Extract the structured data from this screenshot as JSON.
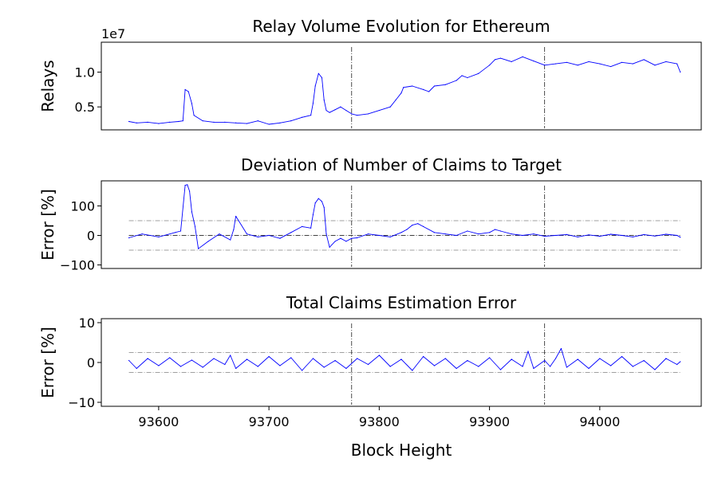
{
  "figure": {
    "xlabel": "Block Height"
  },
  "chart_data": [
    {
      "type": "line",
      "title": "Relay Volume Evolution for Ethereum",
      "xlabel": "",
      "ylabel": "Relays",
      "offset_label": "1e7",
      "xlim": [
        93548,
        94092
      ],
      "ylim": [
        0.17,
        1.43
      ],
      "yticks": [
        0.5,
        1.0
      ],
      "ytick_labels": [
        "0.5",
        "1.0"
      ],
      "x_axis_visible": false,
      "vlines": [
        93775,
        93950
      ],
      "hlines": [],
      "colors": {
        "series": "#0000ff",
        "vline": "#000000"
      },
      "series": [
        {
          "x": [
            93573,
            93580,
            93590,
            93600,
            93610,
            93618,
            93622,
            93624,
            93627,
            93630,
            93632,
            93640,
            93650,
            93660,
            93670,
            93680,
            93690,
            93700,
            93710,
            93720,
            93730,
            93738,
            93740,
            93742,
            93745,
            93748,
            93750,
            93752,
            93755,
            93760,
            93765,
            93770,
            93775,
            93780,
            93790,
            93800,
            93810,
            93815,
            93820,
            93822,
            93830,
            93840,
            93845,
            93850,
            93860,
            93870,
            93875,
            93880,
            93890,
            93900,
            93905,
            93910,
            93920,
            93930,
            93940,
            93950,
            93960,
            93970,
            93980,
            93990,
            94000,
            94010,
            94020,
            94030,
            94040,
            94050,
            94060,
            94070,
            94073
          ],
          "y": [
            0.29,
            0.27,
            0.28,
            0.26,
            0.28,
            0.29,
            0.3,
            0.75,
            0.72,
            0.55,
            0.38,
            0.3,
            0.28,
            0.28,
            0.27,
            0.26,
            0.3,
            0.25,
            0.27,
            0.3,
            0.35,
            0.38,
            0.55,
            0.8,
            0.98,
            0.92,
            0.6,
            0.45,
            0.42,
            0.46,
            0.5,
            0.45,
            0.4,
            0.38,
            0.4,
            0.45,
            0.5,
            0.6,
            0.7,
            0.78,
            0.8,
            0.75,
            0.72,
            0.8,
            0.82,
            0.88,
            0.95,
            0.92,
            0.98,
            1.1,
            1.18,
            1.2,
            1.15,
            1.22,
            1.16,
            1.1,
            1.12,
            1.14,
            1.1,
            1.15,
            1.12,
            1.08,
            1.14,
            1.12,
            1.18,
            1.1,
            1.15,
            1.12,
            1.0
          ]
        }
      ]
    },
    {
      "type": "line",
      "title": "Deviation of Number of Claims to Target",
      "xlabel": "",
      "ylabel": "Error [%]",
      "xlim": [
        93548,
        94092
      ],
      "ylim": [
        -112,
        185
      ],
      "yticks": [
        -100,
        0,
        100
      ],
      "ytick_labels": [
        "−100",
        "0",
        "100"
      ],
      "x_axis_visible": false,
      "vlines": [
        93775,
        93950
      ],
      "hlines": [
        50,
        0,
        -50
      ],
      "colors": {
        "series": "#0000ff",
        "vline": "#000000",
        "hline": "#808080"
      },
      "series": [
        {
          "x": [
            93573,
            93585,
            93600,
            93615,
            93620,
            93624,
            93626,
            93628,
            93630,
            93633,
            93636,
            93645,
            93655,
            93665,
            93668,
            93670,
            93680,
            93690,
            93700,
            93710,
            93720,
            93730,
            93738,
            93740,
            93742,
            93745,
            93748,
            93750,
            93752,
            93755,
            93760,
            93765,
            93770,
            93775,
            93780,
            93790,
            93800,
            93810,
            93820,
            93825,
            93830,
            93835,
            93840,
            93850,
            93860,
            93870,
            93880,
            93890,
            93900,
            93905,
            93910,
            93920,
            93930,
            93940,
            93950,
            93960,
            93970,
            93980,
            93990,
            94000,
            94010,
            94020,
            94030,
            94040,
            94050,
            94060,
            94070,
            94073
          ],
          "y": [
            -8,
            5,
            -5,
            10,
            15,
            170,
            172,
            150,
            80,
            30,
            -45,
            -20,
            5,
            -15,
            20,
            65,
            5,
            -5,
            0,
            -10,
            10,
            30,
            25,
            70,
            110,
            125,
            115,
            95,
            5,
            -40,
            -20,
            -10,
            -20,
            -10,
            -8,
            5,
            0,
            -5,
            10,
            20,
            35,
            40,
            30,
            10,
            5,
            0,
            15,
            5,
            10,
            20,
            15,
            5,
            0,
            5,
            -3,
            0,
            3,
            -5,
            2,
            -3,
            4,
            0,
            -5,
            3,
            -2,
            4,
            0,
            -6
          ]
        }
      ]
    },
    {
      "type": "line",
      "title": "Total Claims Estimation Error",
      "xlabel": "Block Height",
      "ylabel": "Error [%]",
      "xlim": [
        93548,
        94092
      ],
      "ylim": [
        -11,
        11
      ],
      "yticks": [
        -10,
        0,
        10
      ],
      "ytick_labels": [
        "−10",
        "0",
        "10"
      ],
      "xticks": [
        93600,
        93700,
        93800,
        93900,
        94000
      ],
      "xtick_labels": [
        "93600",
        "93700",
        "93800",
        "93900",
        "94000"
      ],
      "x_axis_visible": true,
      "vlines": [
        93775,
        93950
      ],
      "hlines": [
        2.5,
        -2.5
      ],
      "colors": {
        "series": "#0000ff",
        "vline": "#000000",
        "hline": "#808080"
      },
      "series": [
        {
          "x": [
            93573,
            93580,
            93590,
            93600,
            93610,
            93620,
            93630,
            93640,
            93650,
            93660,
            93665,
            93670,
            93680,
            93690,
            93700,
            93710,
            93720,
            93730,
            93740,
            93750,
            93760,
            93770,
            93780,
            93790,
            93800,
            93810,
            93820,
            93830,
            93840,
            93850,
            93860,
            93870,
            93880,
            93890,
            93900,
            93910,
            93920,
            93930,
            93935,
            93940,
            93950,
            93955,
            93960,
            93965,
            93970,
            93980,
            93990,
            94000,
            94010,
            94020,
            94030,
            94040,
            94050,
            94060,
            94070,
            94073
          ],
          "y": [
            0.5,
            -1.5,
            1.0,
            -0.8,
            1.2,
            -1.0,
            0.6,
            -1.2,
            1.0,
            -0.5,
            1.8,
            -1.5,
            0.8,
            -1.0,
            1.5,
            -0.8,
            1.2,
            -2.0,
            1.0,
            -1.2,
            0.5,
            -1.5,
            1.0,
            -0.5,
            1.8,
            -1.0,
            0.8,
            -2.0,
            1.5,
            -0.8,
            1.0,
            -1.5,
            0.5,
            -1.0,
            1.2,
            -1.8,
            0.8,
            -1.0,
            2.8,
            -1.5,
            0.5,
            -1.0,
            1.0,
            3.5,
            -1.2,
            0.8,
            -1.5,
            1.0,
            -0.8,
            1.5,
            -1.0,
            0.5,
            -1.8,
            1.0,
            -0.5,
            0.2
          ]
        }
      ]
    }
  ]
}
